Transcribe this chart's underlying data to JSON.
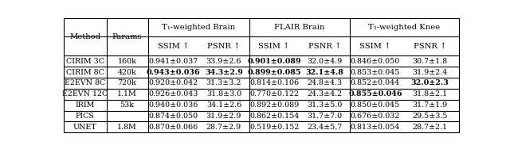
{
  "fig_width": 6.4,
  "fig_height": 1.88,
  "dpi": 100,
  "groups": [
    "T₁-weighted Brain",
    "FLAIR Brain",
    "T₂-weighted Knee"
  ],
  "col_headers": [
    "SSIM ↑",
    "PSNR ↑",
    "SSIM ↑",
    "PSNR ↑",
    "SSIM ↑",
    "PSNR ↑"
  ],
  "methods": [
    "CIRIM 3C",
    "CIRIM 8C",
    "E2EVN 8C",
    "E2EVN 12C",
    "IRIM",
    "PICS",
    "UNET"
  ],
  "params": [
    "160k",
    "420k",
    "720k",
    "1.1M",
    "53k",
    "",
    "1.8M"
  ],
  "data": [
    [
      "0.941±0.037",
      "33.9±2.6",
      "0.901±0.089",
      "32.0±4.9",
      "0.846±0.050",
      "30.7±1.8"
    ],
    [
      "0.943±0.036",
      "34.3±2.9",
      "0.899±0.085",
      "32.1±4.8",
      "0.853±0.045",
      "31.9±2.4"
    ],
    [
      "0.920±0.042",
      "31.3±3.2",
      "0.814±0.106",
      "24.8±4.3",
      "0.852±0.044",
      "32.0±2.3"
    ],
    [
      "0.926±0.043",
      "31.8±3.0",
      "0.770±0.122",
      "24.3±4.2",
      "0.855±0.046",
      "31.8±2.1"
    ],
    [
      "0.940±0.036",
      "34.1±2.6",
      "0.892±0.089",
      "31.3±5.0",
      "0.850±0.045",
      "31.7±1.9"
    ],
    [
      "0.874±0.050",
      "31.9±2.9",
      "0.862±0.154",
      "31.7±7.0",
      "0.676±0.032",
      "29.5±3.5"
    ],
    [
      "0.870±0.066",
      "28.7±2.9",
      "0.519±0.152",
      "23.4±5.7",
      "0.813±0.054",
      "28.7±2.1"
    ]
  ],
  "bold": [
    [
      false,
      false,
      true,
      false,
      false,
      false
    ],
    [
      true,
      true,
      true,
      true,
      false,
      false
    ],
    [
      false,
      false,
      false,
      false,
      false,
      true
    ],
    [
      false,
      false,
      false,
      false,
      true,
      false
    ],
    [
      false,
      false,
      false,
      false,
      false,
      false
    ],
    [
      false,
      false,
      false,
      false,
      false,
      false
    ],
    [
      false,
      false,
      false,
      false,
      false,
      false
    ]
  ],
  "background_color": "#ffffff",
  "line_color": "#000000",
  "font_size": 6.8,
  "header_font_size": 7.2
}
